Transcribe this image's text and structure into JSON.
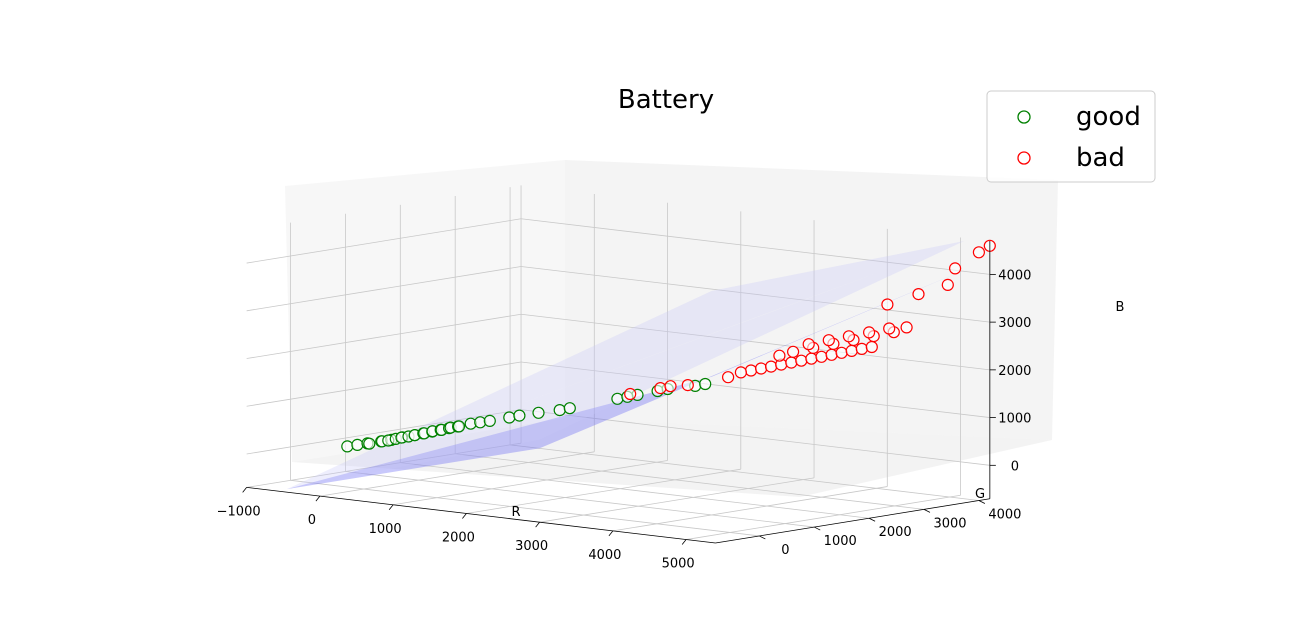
{
  "chart_data": {
    "type": "scatter",
    "projection": "3d",
    "title": "Battery",
    "xlabel": "R",
    "ylabel": "G",
    "zlabel": "B",
    "xticks": [
      "−1000",
      "0",
      "1000",
      "2000",
      "3000",
      "4000",
      "5000"
    ],
    "yticks": [
      "0",
      "1000",
      "2000",
      "3000",
      "4000"
    ],
    "zticks": [
      "0",
      "1000",
      "2000",
      "3000",
      "4000"
    ],
    "xlim": [
      -1000,
      5400
    ],
    "ylim": [
      -800,
      4200
    ],
    "zlim": [
      -700,
      4700
    ],
    "grid": true,
    "legend_position": "top-right",
    "marker": "hollow circle",
    "series": [
      {
        "name": "good",
        "color": "#008000",
        "points": [
          [
            -300,
            100,
            120
          ],
          [
            -200,
            150,
            160
          ],
          [
            -100,
            200,
            200
          ],
          [
            0,
            100,
            230
          ],
          [
            50,
            250,
            260
          ],
          [
            100,
            200,
            280
          ],
          [
            150,
            300,
            300
          ],
          [
            200,
            180,
            320
          ],
          [
            250,
            250,
            350
          ],
          [
            300,
            300,
            380
          ],
          [
            350,
            220,
            400
          ],
          [
            400,
            280,
            420
          ],
          [
            450,
            330,
            450
          ],
          [
            500,
            260,
            470
          ],
          [
            550,
            350,
            500
          ],
          [
            600,
            300,
            520
          ],
          [
            650,
            380,
            550
          ],
          [
            700,
            320,
            580
          ],
          [
            750,
            400,
            600
          ],
          [
            800,
            350,
            620
          ],
          [
            850,
            420,
            650
          ],
          [
            900,
            380,
            680
          ],
          [
            950,
            450,
            700
          ],
          [
            1000,
            400,
            720
          ],
          [
            1100,
            480,
            780
          ],
          [
            1200,
            520,
            820
          ],
          [
            1300,
            560,
            860
          ],
          [
            1500,
            650,
            950
          ],
          [
            1600,
            700,
            1000
          ],
          [
            1800,
            780,
            1080
          ],
          [
            2000,
            900,
            1150
          ],
          [
            2100,
            950,
            1200
          ],
          [
            2600,
            1150,
            1450
          ],
          [
            2800,
            1250,
            1550
          ],
          [
            2700,
            1200,
            1500
          ],
          [
            3000,
            1350,
            1650
          ],
          [
            3100,
            1400,
            1700
          ],
          [
            3400,
            1500,
            1800
          ],
          [
            3500,
            1550,
            1850
          ]
        ]
      },
      {
        "name": "bad",
        "color": "#ff0000",
        "points": [
          [
            2700,
            1250,
            1550
          ],
          [
            3000,
            1400,
            1700
          ],
          [
            3100,
            1450,
            1750
          ],
          [
            3300,
            1500,
            1800
          ],
          [
            3700,
            1700,
            2000
          ],
          [
            3900,
            1850,
            2150
          ],
          [
            4000,
            1900,
            2200
          ],
          [
            4100,
            1950,
            2250
          ],
          [
            4200,
            2000,
            2300
          ],
          [
            4300,
            2050,
            2350
          ],
          [
            4400,
            2100,
            2400
          ],
          [
            4500,
            2150,
            2450
          ],
          [
            4600,
            2200,
            2500
          ],
          [
            4700,
            2250,
            2550
          ],
          [
            4800,
            2300,
            2600
          ],
          [
            4900,
            2350,
            2650
          ],
          [
            5000,
            2400,
            2700
          ],
          [
            5100,
            2450,
            2750
          ],
          [
            4250,
            2150,
            2550
          ],
          [
            4450,
            2250,
            2650
          ],
          [
            4650,
            2350,
            2750
          ],
          [
            4850,
            2450,
            2850
          ],
          [
            5050,
            2550,
            2950
          ],
          [
            5250,
            2650,
            3050
          ],
          [
            5350,
            2750,
            3150
          ],
          [
            4350,
            2300,
            2700
          ],
          [
            4550,
            2400,
            2800
          ],
          [
            4750,
            2500,
            2900
          ],
          [
            4950,
            2600,
            3000
          ],
          [
            5150,
            2700,
            3100
          ],
          [
            4100,
            2100,
            2450
          ],
          [
            3800,
            1800,
            2100
          ],
          [
            4900,
            3000,
            3500
          ],
          [
            5100,
            3300,
            3700
          ],
          [
            5350,
            3500,
            3900
          ],
          [
            5300,
            3700,
            4200
          ],
          [
            5400,
            4000,
            4500
          ],
          [
            5400,
            4200,
            4600
          ]
        ]
      }
    ],
    "planes": [
      {
        "role": "decision surface",
        "color": "#6e6ef5",
        "opacity": 0.75
      },
      {
        "role": "margin surface",
        "color": "#c8c8f8",
        "opacity": 0.6
      },
      {
        "role": "margin surface",
        "color": "#c8c8f8",
        "opacity": 0.6
      }
    ]
  }
}
